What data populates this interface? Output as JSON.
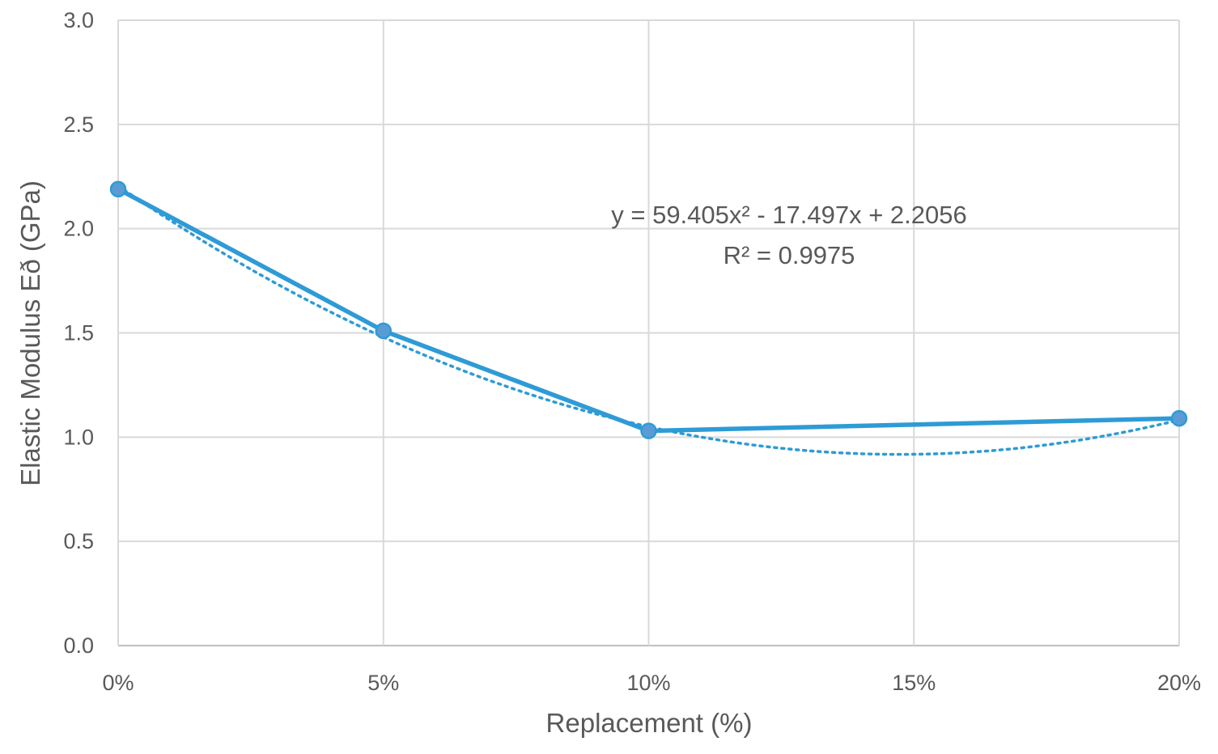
{
  "chart_data": {
    "type": "line",
    "xlabel": "Replacement (%)",
    "ylabel": "Elastic Modulus Eð (GPa)",
    "categories": [
      "0%",
      "5%",
      "10%",
      "15%",
      "20%"
    ],
    "x": [
      0,
      5,
      10,
      15,
      20
    ],
    "xlim": [
      0,
      20
    ],
    "ylim": [
      0,
      3.0
    ],
    "yticks": [
      "0.0",
      "0.5",
      "1.0",
      "1.5",
      "2.0",
      "2.5",
      "3.0"
    ],
    "series": [
      {
        "x": [
          0,
          5,
          10,
          20
        ],
        "values": [
          2.19,
          1.51,
          1.03,
          1.09
        ],
        "color": "#2e9bd6",
        "marker": "circle"
      }
    ],
    "trendline": {
      "type": "polynomial",
      "order": 2,
      "coefficients": [
        59.405,
        -17.497,
        2.2056
      ],
      "style": "dotted",
      "color": "#2e9bd6"
    },
    "annotations": [
      "y = 59.405x² - 17.497x + 2.2056",
      "R² = 0.9975"
    ],
    "grid": true,
    "legend": "none"
  }
}
